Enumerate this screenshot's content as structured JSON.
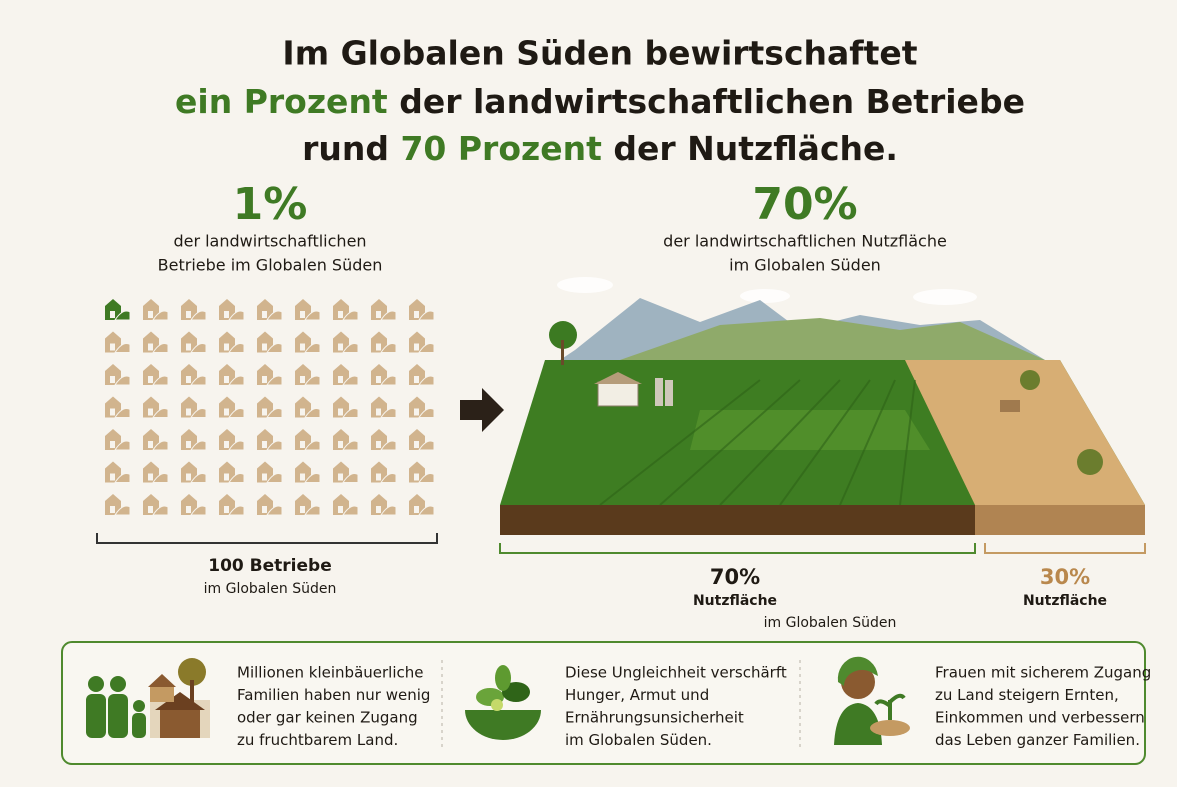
{
  "title": {
    "line1": "Im Globalen Süden bewirtschaftet",
    "line2_highlight": "ein Prozent",
    "line2_rest": "der landwirtschaftlichen Betriebe",
    "line3_start": "rund",
    "line3_highlight": "70 Prozent",
    "line3_rest": "der Nutzfläche."
  },
  "left": {
    "value": "1%",
    "caption": [
      "der landwirtschaftlichen",
      "Betriebe im Globalen Süden"
    ],
    "total": "100 Betriebe",
    "total_sub": "im Globalen Süden"
  },
  "right": {
    "value": "70%",
    "caption": [
      "der landwirtschaftlichen Nutzfläche",
      "im Globalen Süden"
    ],
    "share_large": {
      "value": "70%",
      "label": "Nutzfläche",
      "sub": "im Globalen Süden"
    },
    "share_small": {
      "value": "30%",
      "label": "Nutzfläche"
    }
  },
  "footer": [
    {
      "lines": [
        "Millionen kleinbäuerliche",
        "Familien haben nur wenig",
        "oder gar keinen Zugang",
        "zu fruchtbarem Land."
      ]
    },
    {
      "lines": [
        "Diese Ungleichheit verschärft",
        "Hunger, Armut und",
        "Ernährungsunsicherheit",
        "im Globalen Süden."
      ]
    },
    {
      "lines": [
        "Frauen mit sicherem Zugang",
        "zu Land steigern Ernten,",
        "Einkommen und verbessern",
        "das Leben ganzer Familien."
      ]
    }
  ]
}
